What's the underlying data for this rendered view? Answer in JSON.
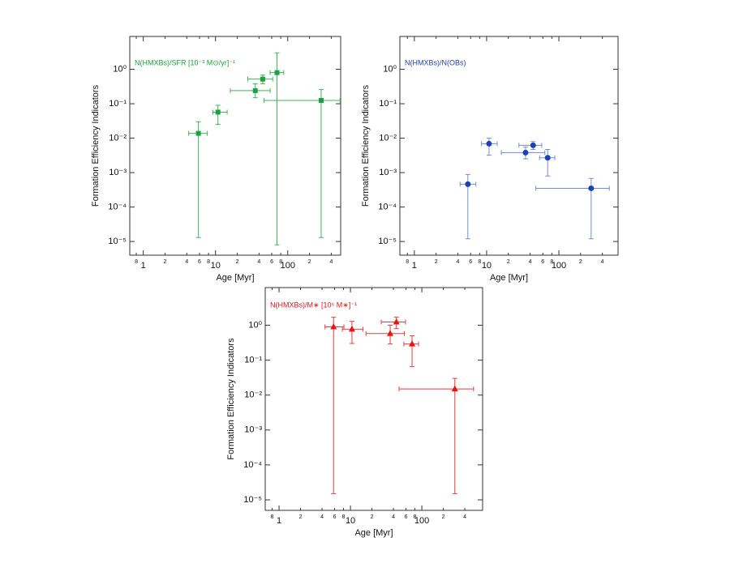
{
  "chart_data": [
    {
      "type": "scatter",
      "marker": "square",
      "color": "#1aa33a",
      "errorbar_color": "#3cb850",
      "annotation": "N(HMXBs)/SFR [10⁻³ M⊙/yr]⁻¹",
      "x_label": "Age [Myr]",
      "y_label": "Formation Efficiency Indicators",
      "log_x": true,
      "log_y": true,
      "xlim": [
        0.65,
        540
      ],
      "ylim": [
        4e-06,
        9
      ],
      "xticks": [
        {
          "value": 0.8,
          "label": "8"
        },
        1,
        {
          "value": 2,
          "label": "2"
        },
        {
          "value": 4,
          "label": "4"
        },
        {
          "value": 6,
          "label": "6"
        },
        {
          "value": 8,
          "label": "8"
        },
        10,
        {
          "value": 20,
          "label": "2"
        },
        {
          "value": 40,
          "label": "4"
        },
        {
          "value": 60,
          "label": "6"
        },
        {
          "value": 80,
          "label": "8"
        },
        100,
        {
          "value": 200,
          "label": "2"
        },
        {
          "value": 400,
          "label": "4"
        }
      ],
      "yticks": [
        {
          "value": 1e-05,
          "label": "10⁻⁵"
        },
        {
          "value": 0.0001,
          "label": "10⁻⁴"
        },
        {
          "value": 0.001,
          "label": "10⁻³"
        },
        {
          "value": 0.01,
          "label": "10⁻²"
        },
        {
          "value": 0.1,
          "label": "10⁻¹"
        },
        {
          "value": 1,
          "label": "10⁰"
        }
      ],
      "x": [
        5.8,
        10.8,
        35.5,
        45,
        71,
        290
      ],
      "y": [
        0.0138,
        0.057,
        0.24,
        0.52,
        0.8,
        0.125
      ],
      "x_low": [
        4.25,
        9.2,
        16,
        28,
        57,
        47
      ],
      "x_high": [
        7.7,
        14.5,
        57,
        62,
        88,
        530
      ],
      "y_low": [
        1.3e-05,
        0.025,
        0.15,
        0.38,
        8e-06,
        1.3e-05
      ],
      "y_high": [
        0.03,
        0.09,
        0.38,
        0.68,
        3,
        0.26
      ]
    },
    {
      "type": "scatter",
      "marker": "circle",
      "color": "#1f3fb5",
      "errorbar_color": "#6f8fd6",
      "annotation": "N(HMXBs)/N(OBs)",
      "x_label": "Age [Myr]",
      "y_label": "Formation Efficiency Indicators",
      "log_x": true,
      "log_y": true,
      "xlim": [
        0.63,
        660
      ],
      "ylim": [
        4e-06,
        9
      ],
      "xticks": [
        {
          "value": 0.8,
          "label": "8"
        },
        1,
        {
          "value": 2,
          "label": "2"
        },
        {
          "value": 4,
          "label": "4"
        },
        {
          "value": 6,
          "label": "6"
        },
        {
          "value": 8,
          "label": "8"
        },
        10,
        {
          "value": 20,
          "label": "2"
        },
        {
          "value": 40,
          "label": "4"
        },
        {
          "value": 60,
          "label": "6"
        },
        {
          "value": 80,
          "label": "8"
        },
        100,
        {
          "value": 200,
          "label": "2"
        },
        {
          "value": 400,
          "label": "4"
        }
      ],
      "yticks": [
        {
          "value": 1e-05,
          "label": "10⁻⁵"
        },
        {
          "value": 0.0001,
          "label": "10⁻⁴"
        },
        {
          "value": 0.001,
          "label": "10⁻³"
        },
        {
          "value": 0.01,
          "label": "10⁻²"
        },
        {
          "value": 0.1,
          "label": "10⁻¹"
        },
        {
          "value": 1,
          "label": "10⁰"
        }
      ],
      "x": [
        5.5,
        10.8,
        34.6,
        44,
        70,
        280
      ],
      "y": [
        0.00046,
        0.0069,
        0.0038,
        0.0062,
        0.0027,
        0.00035
      ],
      "x_low": [
        4.3,
        8.5,
        16,
        28,
        54,
        48
      ],
      "x_high": [
        7.1,
        14,
        64,
        58,
        88,
        500
      ],
      "y_low": [
        1.2e-05,
        0.0032,
        0.0025,
        0.0047,
        0.0008,
        1.2e-05
      ],
      "y_high": [
        0.00088,
        0.01,
        0.0055,
        0.008,
        0.0047,
        0.00068
      ]
    },
    {
      "type": "scatter",
      "marker": "triangle",
      "color": "#ee1111",
      "errorbar_color": "#ee3b3b",
      "annotation": "N(HMXBs)/M∗ [10⁵ M∗]⁻¹",
      "x_label": "Age [Myr]",
      "y_label": "Formation Efficiency Indicators",
      "log_x": true,
      "log_y": true,
      "xlim": [
        0.64,
        710
      ],
      "ylim": [
        5e-06,
        12
      ],
      "xticks": [
        {
          "value": 0.8,
          "label": "8"
        },
        1,
        {
          "value": 2,
          "label": "2"
        },
        {
          "value": 4,
          "label": "4"
        },
        {
          "value": 6,
          "label": "6"
        },
        {
          "value": 8,
          "label": "8"
        },
        10,
        {
          "value": 20,
          "label": "2"
        },
        {
          "value": 40,
          "label": "4"
        },
        {
          "value": 60,
          "label": "6"
        },
        {
          "value": 80,
          "label": "8"
        },
        100,
        {
          "value": 200,
          "label": "2"
        },
        {
          "value": 400,
          "label": "4"
        }
      ],
      "yticks": [
        {
          "value": 1e-05,
          "label": "10⁻⁵"
        },
        {
          "value": 0.0001,
          "label": "10⁻⁴"
        },
        {
          "value": 0.001,
          "label": "10⁻³"
        },
        {
          "value": 0.01,
          "label": "10⁻²"
        },
        {
          "value": 0.1,
          "label": "10⁻¹"
        },
        {
          "value": 1,
          "label": "10⁰"
        }
      ],
      "x": [
        5.8,
        10.5,
        36,
        44,
        73,
        290
      ],
      "y": [
        0.9,
        0.77,
        0.58,
        1.24,
        0.29,
        0.015
      ],
      "x_low": [
        4.4,
        7.7,
        16.5,
        27,
        56,
        48
      ],
      "x_high": [
        8.1,
        15,
        57,
        59,
        90,
        530
      ],
      "y_low": [
        1.5e-05,
        0.3,
        0.29,
        0.8,
        0.065,
        1.5e-05
      ],
      "y_high": [
        1.7,
        1.3,
        1.0,
        1.7,
        0.5,
        0.03
      ]
    }
  ]
}
